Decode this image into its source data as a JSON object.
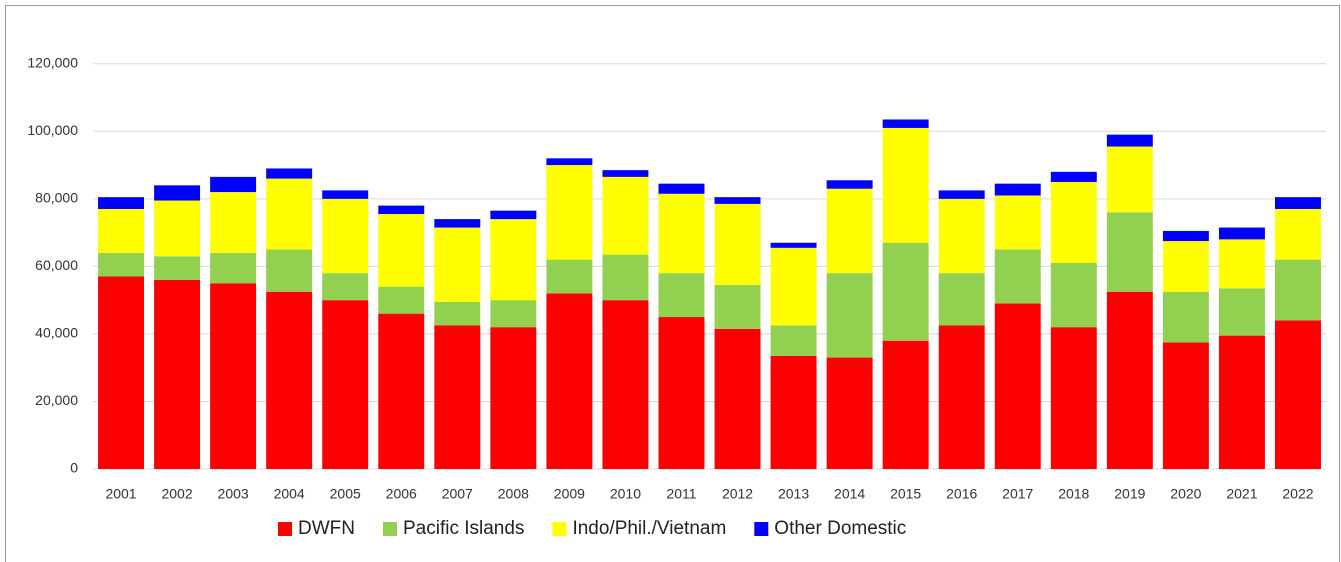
{
  "chart_data": {
    "type": "stacked_bar",
    "categories": [
      "2001",
      "2002",
      "2003",
      "2004",
      "2005",
      "2006",
      "2007",
      "2008",
      "2009",
      "2010",
      "2011",
      "2012",
      "2013",
      "2014",
      "2015",
      "2016",
      "2017",
      "2018",
      "2019",
      "2020",
      "2021",
      "2022"
    ],
    "series": [
      {
        "name": "DWFN",
        "color": "#ff0000",
        "values": [
          57000,
          56000,
          55000,
          52500,
          50000,
          46000,
          42500,
          42000,
          52000,
          50000,
          45000,
          41500,
          33500,
          33000,
          38000,
          42500,
          49000,
          42000,
          52500,
          37500,
          39500,
          44000
        ]
      },
      {
        "name": "Pacific Islands",
        "color": "#92d050",
        "values": [
          7000,
          7000,
          9000,
          12500,
          8000,
          8000,
          7000,
          8000,
          10000,
          13500,
          13000,
          13000,
          9000,
          25000,
          29000,
          15500,
          16000,
          19000,
          23500,
          15000,
          14000,
          18000
        ]
      },
      {
        "name": "Indo/Phil./Vietnam",
        "color": "#ffff00",
        "values": [
          13000,
          16500,
          18000,
          21000,
          22000,
          21500,
          22000,
          24000,
          28000,
          23000,
          23500,
          24000,
          23000,
          25000,
          34000,
          22000,
          16000,
          24000,
          19500,
          15000,
          14500,
          15000
        ]
      },
      {
        "name": "Other Domestic",
        "color": "#0000ff",
        "values": [
          3500,
          4500,
          4500,
          3000,
          2500,
          2500,
          2500,
          2500,
          2000,
          2000,
          3000,
          2000,
          1500,
          2500,
          2500,
          2500,
          3500,
          3000,
          3500,
          3000,
          3500,
          3500
        ]
      }
    ],
    "ylim": [
      0,
      130000
    ],
    "yticks": [
      0,
      {
        "value": 20000,
        "label": "20,000"
      },
      {
        "value": 40000,
        "label": "40,000"
      },
      {
        "value": 60000,
        "label": "60,000"
      },
      {
        "value": 80000,
        "label": "80,000"
      },
      {
        "value": 100000,
        "label": "100,000"
      },
      {
        "value": 120000,
        "label": "120,000"
      }
    ],
    "grid": true,
    "legend": "bottom"
  }
}
